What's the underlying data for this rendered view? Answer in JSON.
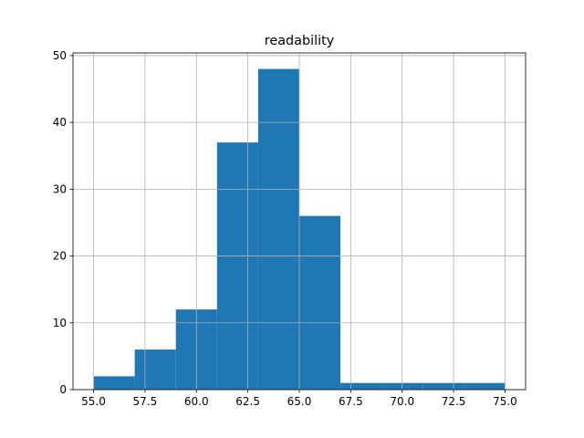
{
  "chart_data": {
    "type": "histogram",
    "title": "readability",
    "bins": [
      55,
      57,
      59,
      61,
      63,
      65,
      67,
      69,
      71,
      73,
      75
    ],
    "values": [
      2,
      6,
      12,
      37,
      48,
      26,
      1,
      1,
      1,
      1
    ],
    "color": "#1f77b4",
    "xlim": [
      54,
      76
    ],
    "xticks": [
      {
        "value": 55,
        "label": "55.0"
      },
      57.5,
      {
        "value": 60,
        "label": "60.0"
      },
      62.5,
      {
        "value": 65,
        "label": "65.0"
      },
      67.5,
      {
        "value": 70,
        "label": "70.0"
      },
      72.5,
      {
        "value": 75,
        "label": "75.0"
      }
    ],
    "ylim": [
      0,
      50.4
    ],
    "yticks": [
      0,
      10,
      20,
      30,
      40,
      50
    ],
    "grid": true
  }
}
